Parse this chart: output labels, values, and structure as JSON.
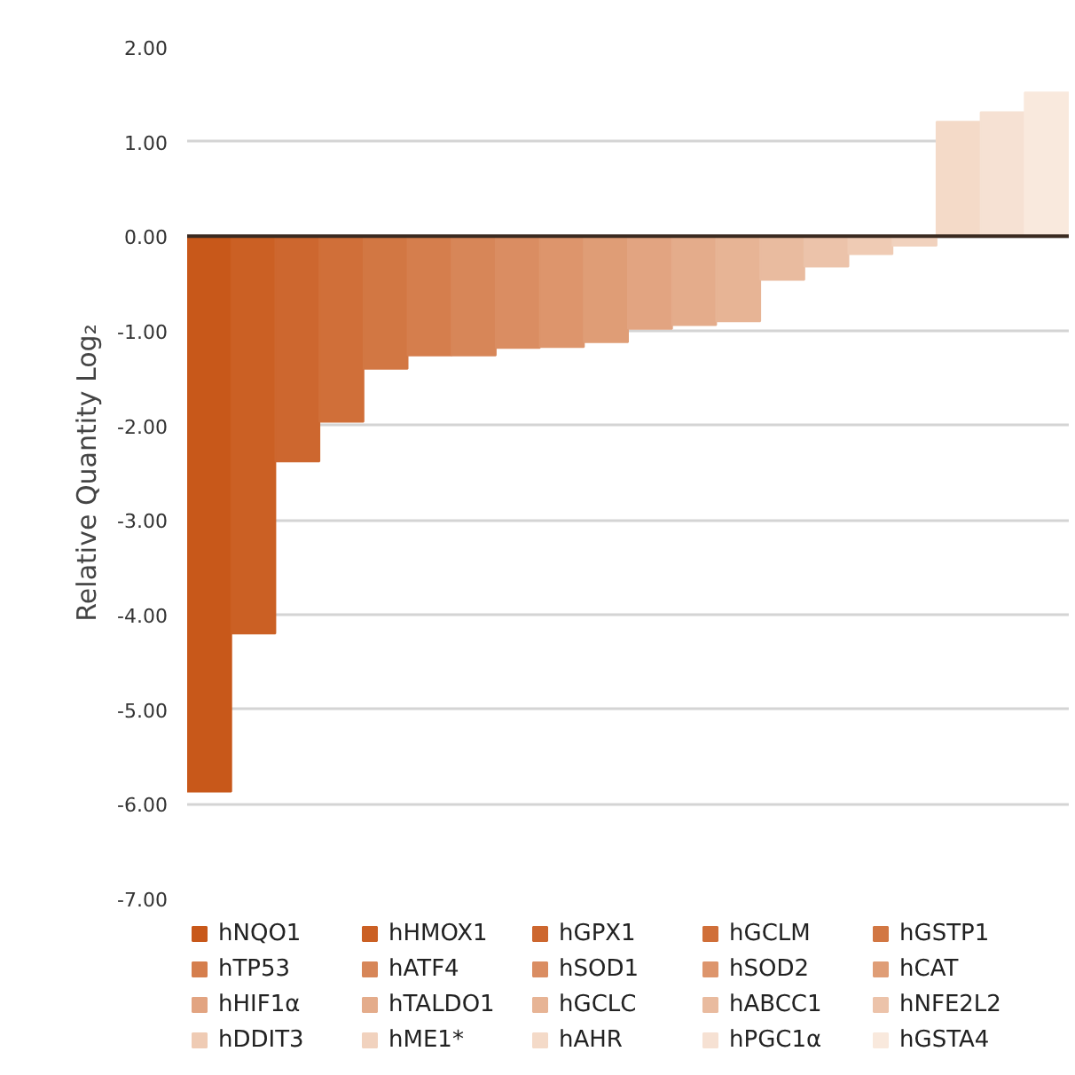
{
  "chart_data": {
    "type": "bar",
    "ylabel": "Relative Quantity Log₂",
    "categories": [
      null,
      null,
      null,
      null,
      null,
      null,
      null,
      null,
      null,
      null,
      null,
      null,
      null,
      null,
      null,
      null,
      null,
      null,
      null,
      null
    ],
    "series": [
      {
        "name": "hNQO1",
        "color": "#c8581a",
        "values": [
          -5.87,
          null,
          null,
          null,
          null,
          null,
          null,
          null,
          null,
          null,
          null,
          null,
          null,
          null,
          null,
          null,
          null,
          null,
          null,
          null
        ]
      },
      {
        "name": "hHMOX1",
        "color": "#cb6024",
        "values": [
          null,
          -4.2,
          null,
          null,
          null,
          null,
          null,
          null,
          null,
          null,
          null,
          null,
          null,
          null,
          null,
          null,
          null,
          null,
          null,
          null
        ]
      },
      {
        "name": "hGPX1",
        "color": "#cd672f",
        "values": [
          null,
          null,
          -2.38,
          null,
          null,
          null,
          null,
          null,
          null,
          null,
          null,
          null,
          null,
          null,
          null,
          null,
          null,
          null,
          null,
          null
        ]
      },
      {
        "name": "hGCLM",
        "color": "#d06f39",
        "values": [
          null,
          null,
          null,
          -1.96,
          null,
          null,
          null,
          null,
          null,
          null,
          null,
          null,
          null,
          null,
          null,
          null,
          null,
          null,
          null,
          null
        ]
      },
      {
        "name": "hGSTP1",
        "color": "#d27743",
        "values": [
          null,
          null,
          null,
          null,
          -1.4,
          null,
          null,
          null,
          null,
          null,
          null,
          null,
          null,
          null,
          null,
          null,
          null,
          null,
          null,
          null
        ]
      },
      {
        "name": "hTP53",
        "color": "#d57e4d",
        "values": [
          null,
          null,
          null,
          null,
          null,
          -1.26,
          null,
          null,
          null,
          null,
          null,
          null,
          null,
          null,
          null,
          null,
          null,
          null,
          null,
          null
        ]
      },
      {
        "name": "hATF4",
        "color": "#d78658",
        "values": [
          null,
          null,
          null,
          null,
          null,
          null,
          -1.26,
          null,
          null,
          null,
          null,
          null,
          null,
          null,
          null,
          null,
          null,
          null,
          null,
          null
        ]
      },
      {
        "name": "hSOD1",
        "color": "#da8d62",
        "values": [
          null,
          null,
          null,
          null,
          null,
          null,
          null,
          -1.18,
          null,
          null,
          null,
          null,
          null,
          null,
          null,
          null,
          null,
          null,
          null,
          null
        ]
      },
      {
        "name": "hSOD2",
        "color": "#dd956c",
        "values": [
          null,
          null,
          null,
          null,
          null,
          null,
          null,
          null,
          -1.17,
          null,
          null,
          null,
          null,
          null,
          null,
          null,
          null,
          null,
          null,
          null
        ]
      },
      {
        "name": "hCAT",
        "color": "#df9d76",
        "values": [
          null,
          null,
          null,
          null,
          null,
          null,
          null,
          null,
          null,
          -1.12,
          null,
          null,
          null,
          null,
          null,
          null,
          null,
          null,
          null,
          null
        ]
      },
      {
        "name": "hHIF1α",
        "color": "#e2a481",
        "values": [
          null,
          null,
          null,
          null,
          null,
          null,
          null,
          null,
          null,
          null,
          -0.98,
          null,
          null,
          null,
          null,
          null,
          null,
          null,
          null,
          null
        ]
      },
      {
        "name": "hTALDO1",
        "color": "#e4ac8b",
        "values": [
          null,
          null,
          null,
          null,
          null,
          null,
          null,
          null,
          null,
          null,
          null,
          -0.94,
          null,
          null,
          null,
          null,
          null,
          null,
          null,
          null
        ]
      },
      {
        "name": "hGCLC",
        "color": "#e7b495",
        "values": [
          null,
          null,
          null,
          null,
          null,
          null,
          null,
          null,
          null,
          null,
          null,
          null,
          -0.9,
          null,
          null,
          null,
          null,
          null,
          null,
          null
        ]
      },
      {
        "name": "hABCC1",
        "color": "#e9bb9f",
        "values": [
          null,
          null,
          null,
          null,
          null,
          null,
          null,
          null,
          null,
          null,
          null,
          null,
          null,
          -0.46,
          null,
          null,
          null,
          null,
          null,
          null
        ]
      },
      {
        "name": "hNFE2L2",
        "color": "#ecc3aa",
        "values": [
          null,
          null,
          null,
          null,
          null,
          null,
          null,
          null,
          null,
          null,
          null,
          null,
          null,
          null,
          -0.32,
          null,
          null,
          null,
          null,
          null
        ]
      },
      {
        "name": "hDDIT3",
        "color": "#efcbb4",
        "values": [
          null,
          null,
          null,
          null,
          null,
          null,
          null,
          null,
          null,
          null,
          null,
          null,
          null,
          null,
          null,
          -0.19,
          null,
          null,
          null,
          null
        ]
      },
      {
        "name": "hME1*",
        "color": "#f1d2be",
        "values": [
          null,
          null,
          null,
          null,
          null,
          null,
          null,
          null,
          null,
          null,
          null,
          null,
          null,
          null,
          null,
          null,
          -0.1,
          null,
          null,
          null
        ]
      },
      {
        "name": "hAHR",
        "color": "#f4dac8",
        "values": [
          null,
          null,
          null,
          null,
          null,
          null,
          null,
          null,
          null,
          null,
          null,
          null,
          null,
          null,
          null,
          null,
          null,
          1.21,
          null,
          null
        ]
      },
      {
        "name": "hPGC1α",
        "color": "#f6e1d3",
        "values": [
          null,
          null,
          null,
          null,
          null,
          null,
          null,
          null,
          null,
          null,
          null,
          null,
          null,
          null,
          null,
          null,
          null,
          null,
          1.31,
          null
        ]
      },
      {
        "name": "hGSTA4",
        "color": "#f9e9dd",
        "values": [
          null,
          null,
          null,
          null,
          null,
          null,
          null,
          null,
          null,
          null,
          null,
          null,
          null,
          null,
          null,
          null,
          null,
          null,
          null,
          1.52
        ]
      }
    ],
    "ylim": [
      -7,
      2
    ],
    "yticks": [
      {
        "value": 2,
        "label": "2.00"
      },
      {
        "value": 1,
        "label": "1.00"
      },
      {
        "value": 0,
        "label": "0.00"
      },
      {
        "value": -1,
        "label": "-1.00"
      },
      {
        "value": -2,
        "label": "-2.00"
      },
      {
        "value": -3,
        "label": "-3.00"
      },
      {
        "value": -4,
        "label": "-4.00"
      },
      {
        "value": -5,
        "label": "-5.00"
      },
      {
        "value": -6,
        "label": "-6.00"
      },
      {
        "value": -7,
        "label": "-7.00"
      }
    ],
    "grid": "y",
    "legend": "bottom",
    "tick_labels": "y"
  }
}
